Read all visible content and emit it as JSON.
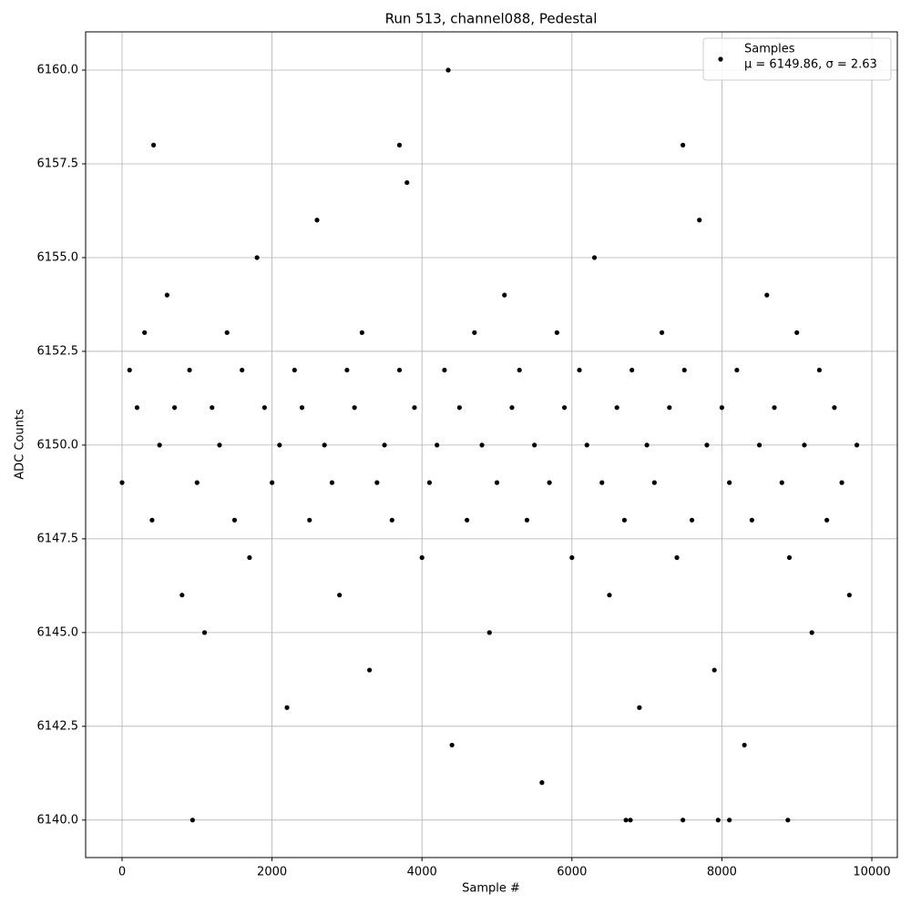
{
  "chart_data": {
    "type": "scatter",
    "title": "Run 513, channel088, Pedestal",
    "x_label": "Sample #",
    "y_label": "ADC Counts",
    "xlim": [
      -486,
      10340
    ],
    "ylim": [
      6139.0,
      6161.02
    ],
    "xticks": [
      0,
      2000,
      4000,
      6000,
      8000,
      10000
    ],
    "yticks": [
      {
        "value": 6140,
        "label": "6140.0"
      },
      6142.5,
      {
        "value": 6145,
        "label": "6145.0"
      },
      6147.5,
      {
        "value": 6150,
        "label": "6150.0"
      },
      6152.5,
      {
        "value": 6155,
        "label": "6155.0"
      },
      6157.5,
      {
        "value": 6160,
        "label": "6160.0"
      }
    ],
    "grid": true,
    "legend_position": "upper right",
    "legend_note": "μ = 6149.86, σ = 2.63",
    "series": [
      {
        "name": "Samples",
        "color": "#000000",
        "x": [
          0,
          100,
          200,
          300,
          400,
          500,
          600,
          700,
          800,
          900,
          1000,
          1100,
          1200,
          1300,
          1400,
          1500,
          1600,
          1700,
          1800,
          1900,
          2000,
          2100,
          2200,
          2300,
          2400,
          2500,
          2600,
          2700,
          2800,
          2900,
          3000,
          3100,
          3200,
          3300,
          3400,
          3500,
          3600,
          3700,
          3800,
          3900,
          4000,
          4100,
          4200,
          4300,
          4400,
          4500,
          4600,
          4700,
          4800,
          4900,
          5000,
          5100,
          5200,
          5300,
          5400,
          5500,
          5600,
          5700,
          5800,
          5900,
          6000,
          6100,
          6200,
          6300,
          6400,
          6500,
          6600,
          6700,
          6800,
          6900,
          7000,
          7100,
          7200,
          7300,
          7400,
          7500,
          7600,
          7700,
          7800,
          7900,
          8000,
          8100,
          8200,
          8300,
          8400,
          8500,
          8600,
          8700,
          8800,
          8900,
          9000,
          9100,
          9200,
          9300,
          9400,
          9500,
          9600,
          9700,
          9800,
          4350,
          420,
          3700,
          7480,
          940,
          6720,
          6780,
          7480,
          7950,
          8100,
          8880
        ],
        "values": [
          6149,
          6152,
          6151,
          6153,
          6148,
          6150,
          6154,
          6151,
          6146,
          6152,
          6149,
          6145,
          6151,
          6150,
          6153,
          6148,
          6152,
          6147,
          6155,
          6151,
          6149,
          6150,
          6143,
          6152,
          6151,
          6148,
          6156,
          6150,
          6149,
          6146,
          6152,
          6151,
          6153,
          6144,
          6149,
          6150,
          6148,
          6152,
          6157,
          6151,
          6147,
          6149,
          6150,
          6152,
          6142,
          6151,
          6148,
          6153,
          6150,
          6145,
          6149,
          6154,
          6151,
          6152,
          6148,
          6150,
          6141,
          6149,
          6153,
          6151,
          6147,
          6152,
          6150,
          6155,
          6149,
          6146,
          6151,
          6148,
          6152,
          6143,
          6150,
          6149,
          6153,
          6151,
          6147,
          6152,
          6148,
          6156,
          6150,
          6144,
          6151,
          6149,
          6152,
          6142,
          6148,
          6150,
          6154,
          6151,
          6149,
          6147,
          6153,
          6150,
          6145,
          6152,
          6148,
          6151,
          6149,
          6146,
          6150,
          6160,
          6158,
          6158,
          6158,
          6140,
          6140,
          6140,
          6140,
          6140,
          6140,
          6140
        ]
      }
    ]
  }
}
